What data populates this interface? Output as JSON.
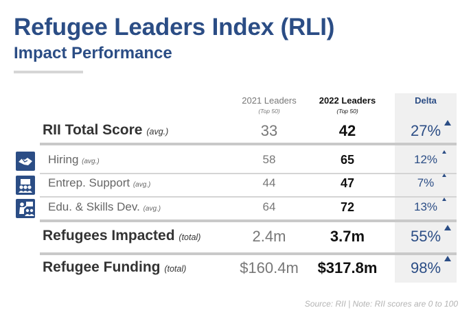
{
  "chart_data": {
    "type": "table",
    "title": "Refugee Leaders Index (RLI)",
    "subtitle": "Impact Performance",
    "columns": [
      {
        "label": "2021 Leaders",
        "sub": "(Top 50)"
      },
      {
        "label": "2022 Leaders",
        "sub": "(Top 50)"
      },
      {
        "label": "Delta",
        "sub": ""
      }
    ],
    "rows": [
      {
        "label": "RII Total Score",
        "qualifier": "(avg.)",
        "v2021": "33",
        "v2022": "42",
        "delta": "27%"
      },
      {
        "label": "Hiring",
        "qualifier": "(avg.)",
        "v2021": "58",
        "v2022": "65",
        "delta": "12%",
        "icon": "handshake-icon"
      },
      {
        "label": "Entrep. Support",
        "qualifier": "(avg.)",
        "v2021": "44",
        "v2022": "47",
        "delta": "7%",
        "icon": "team-icon"
      },
      {
        "label": "Edu. & Skills Dev.",
        "qualifier": "(avg.)",
        "v2021": "64",
        "v2022": "72",
        "delta": "13%",
        "icon": "teacher-icon"
      },
      {
        "label": "Refugees Impacted",
        "qualifier": "(total)",
        "v2021": "2.4m",
        "v2022": "3.7m",
        "delta": "55%"
      },
      {
        "label": "Refugee Funding",
        "qualifier": "(total)",
        "v2021": "$160.4m",
        "v2022": "$317.8m",
        "delta": "98%"
      }
    ],
    "source": "Source: RII | Note: RII scores are 0 to 100"
  },
  "colors": {
    "accent": "#2b4d85",
    "delta_bg": "#f0f0f0",
    "muted": "#777777"
  }
}
